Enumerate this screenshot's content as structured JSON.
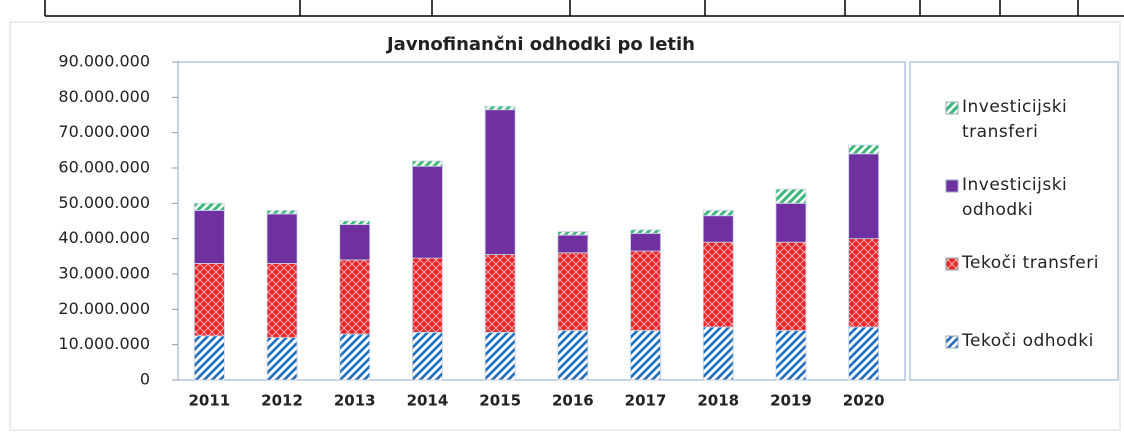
{
  "chart_data": {
    "type": "stacked_bar",
    "title": "Javnofinančni odhodki po letih",
    "categories": [
      "2011",
      "2012",
      "2013",
      "2014",
      "2015",
      "2016",
      "2017",
      "2018",
      "2019",
      "2020"
    ],
    "series": [
      {
        "name": "Tekoči odhodki",
        "color": "#1f6fc0",
        "values": [
          12500000,
          12000000,
          13000000,
          13500000,
          13500000,
          14000000,
          14000000,
          15000000,
          14000000,
          15000000
        ]
      },
      {
        "name": "Tekoči transferi",
        "color": "#e8262a",
        "values": [
          20500000,
          21000000,
          21000000,
          21000000,
          22000000,
          22000000,
          22500000,
          24000000,
          25000000,
          25000000
        ]
      },
      {
        "name": "Investicijski odhodki",
        "color": "#7030a0",
        "values": [
          15000000,
          14000000,
          10000000,
          26000000,
          41000000,
          5000000,
          5000000,
          7500000,
          11000000,
          24000000
        ]
      },
      {
        "name": "Investicijski transferi",
        "color": "#3cb878",
        "values": [
          2000000,
          1000000,
          1000000,
          1500000,
          1000000,
          1000000,
          1000000,
          1500000,
          4000000,
          2500000
        ]
      }
    ],
    "ylim": [
      0,
      90000000
    ],
    "yticks": [
      0,
      {
        "value": 10000000,
        "label": "10.000.000"
      },
      {
        "value": 20000000,
        "label": "20.000.000"
      },
      {
        "value": 30000000,
        "label": "30.000.000"
      },
      {
        "value": 40000000,
        "label": "40.000.000"
      },
      {
        "value": 50000000,
        "label": "50.000.000"
      },
      {
        "value": 60000000,
        "label": "60.000.000"
      },
      {
        "value": 70000000,
        "label": "70.000.000"
      },
      {
        "value": 80000000,
        "label": "80.000.000"
      },
      {
        "value": 90000000,
        "label": "90.000.000"
      }
    ],
    "legend": "right"
  }
}
